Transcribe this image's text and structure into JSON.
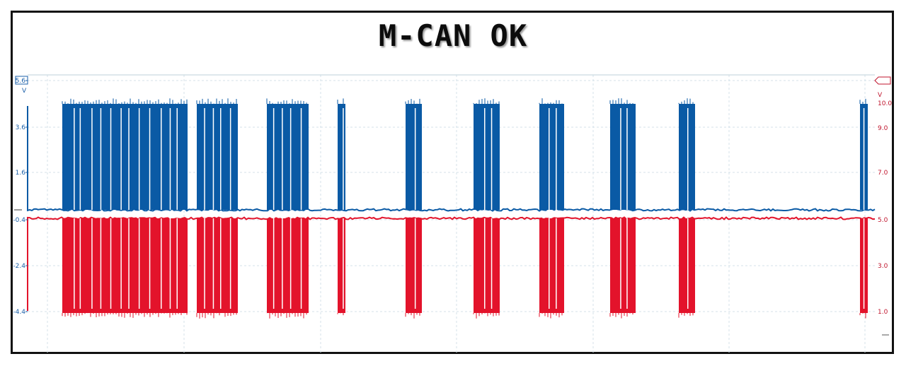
{
  "chart_data": {
    "type": "line",
    "title": "M-CAN OK",
    "left_axis": {
      "unit": "V",
      "ticks": [
        "5.6",
        "3.6",
        "1.6",
        "-0.4",
        "-2.4",
        "-4.4"
      ],
      "color": "#1a5fa8"
    },
    "right_axis": {
      "unit": "V",
      "ticks": [
        "10.0",
        "9.0",
        "7.0",
        "5.0",
        "3.0",
        "1.0"
      ],
      "color": "#c0152d"
    },
    "grid": true,
    "series": [
      {
        "color": "#0a5aa5",
        "idle_level": 0,
        "dominant_level": 4.5,
        "bursts": [
          [
            88,
            265
          ],
          [
            278,
            336
          ],
          [
            377,
            436
          ],
          [
            477,
            488
          ],
          [
            573,
            596
          ],
          [
            669,
            706
          ],
          [
            762,
            797
          ],
          [
            862,
            898
          ],
          [
            959,
            982
          ],
          [
            1215,
            1226
          ]
        ]
      },
      {
        "color": "#e3132b",
        "idle_level": 0,
        "dominant_level": -4.2,
        "bursts": [
          [
            88,
            265
          ],
          [
            278,
            336
          ],
          [
            377,
            436
          ],
          [
            477,
            488
          ],
          [
            573,
            596
          ],
          [
            669,
            706
          ],
          [
            762,
            797
          ],
          [
            862,
            898
          ],
          [
            959,
            982
          ],
          [
            1215,
            1226
          ]
        ]
      }
    ]
  }
}
